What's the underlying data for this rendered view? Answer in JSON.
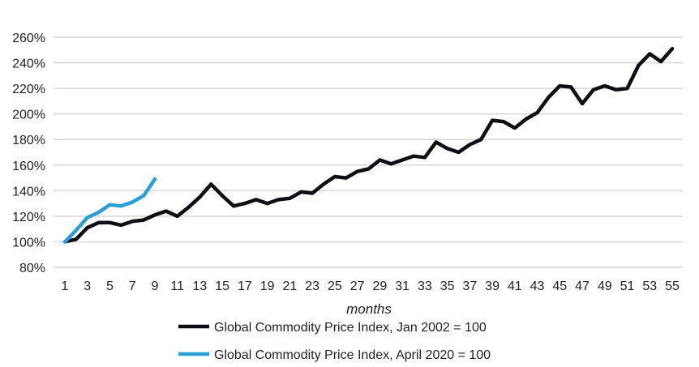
{
  "chart_data": {
    "type": "line",
    "title": "",
    "xlabel": "months",
    "ylabel": "",
    "ylim": [
      80,
      260
    ],
    "xlim": [
      1,
      55
    ],
    "yticks": [
      "80%",
      "100%",
      "120%",
      "140%",
      "160%",
      "180%",
      "200%",
      "220%",
      "240%",
      "260%"
    ],
    "ytick_values": [
      80,
      100,
      120,
      140,
      160,
      180,
      200,
      220,
      240,
      260
    ],
    "xticks": [
      "1",
      "3",
      "5",
      "7",
      "9",
      "11",
      "13",
      "15",
      "17",
      "19",
      "21",
      "23",
      "25",
      "27",
      "29",
      "31",
      "33",
      "35",
      "37",
      "39",
      "41",
      "43",
      "45",
      "47",
      "49",
      "51",
      "53",
      "55"
    ],
    "grid": true,
    "legend_position": "bottom",
    "series": [
      {
        "name": "Global Commodity Price Index, Jan 2002 = 100",
        "color": "#0d0d12",
        "values": [
          100,
          102,
          111,
          115,
          115,
          113,
          116,
          117,
          121,
          124,
          120,
          127,
          135,
          145,
          136,
          128,
          130,
          133,
          130,
          133,
          134,
          139,
          138,
          145,
          151,
          150,
          155,
          157,
          164,
          161,
          164,
          167,
          166,
          178,
          173,
          170,
          176,
          180,
          195,
          194,
          189,
          196,
          201,
          213,
          222,
          221,
          208,
          219,
          222,
          219,
          220,
          238,
          247,
          241,
          251
        ]
      },
      {
        "name": "Global Commodity Price Index, April 2020 = 100",
        "color": "#2a9fd6",
        "values": [
          100,
          109,
          119,
          123,
          129,
          128,
          131,
          136,
          149
        ]
      }
    ]
  }
}
